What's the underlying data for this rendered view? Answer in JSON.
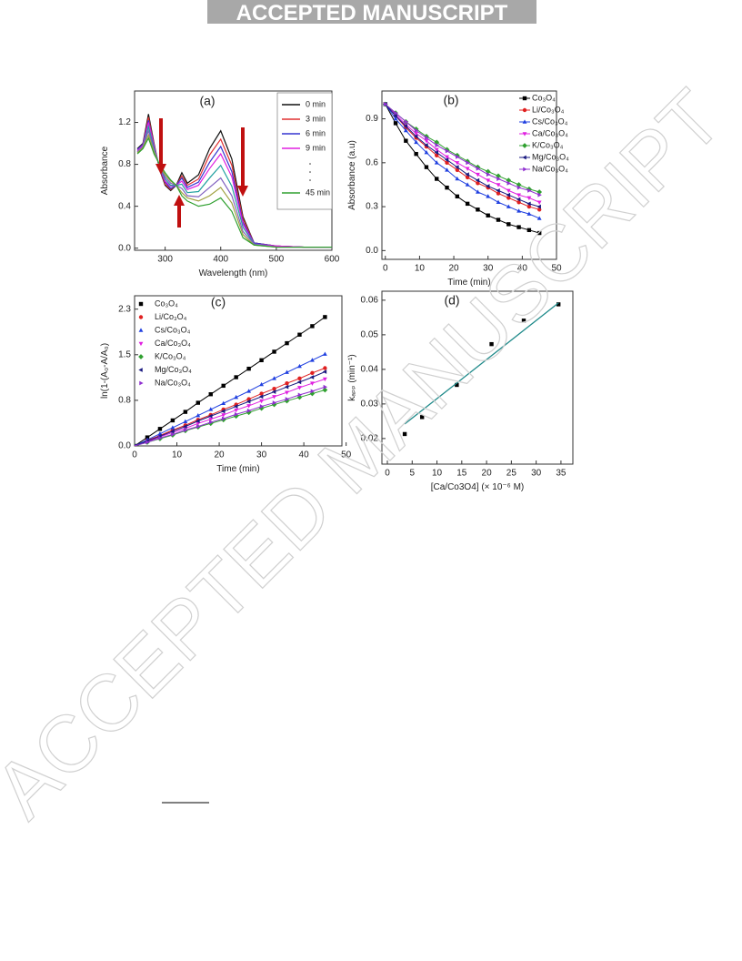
{
  "banner": "ACCEPTED MANUSCRIPT",
  "watermark": "ACCEPTED MANUSCRIPT",
  "chart_data": [
    {
      "type": "line",
      "panel_label": "(a)",
      "x_label": "Wavelength (nm)",
      "y_label": "Absorbance",
      "x": [
        250,
        260,
        270,
        280,
        290,
        300,
        310,
        320,
        330,
        340,
        360,
        380,
        400,
        420,
        440,
        460,
        500,
        550,
        600
      ],
      "series": [
        {
          "name": "0 min",
          "color": "#111111",
          "values": [
            0.95,
            1.0,
            1.28,
            1.0,
            0.75,
            0.6,
            0.55,
            0.6,
            0.72,
            0.62,
            0.7,
            0.95,
            1.12,
            0.85,
            0.3,
            0.05,
            0.02,
            0.01,
            0.01
          ]
        },
        {
          "name": "3 min",
          "color": "#e03030",
          "values": [
            0.94,
            0.99,
            1.25,
            0.99,
            0.76,
            0.61,
            0.56,
            0.6,
            0.69,
            0.6,
            0.66,
            0.89,
            1.04,
            0.79,
            0.28,
            0.05,
            0.02,
            0.01,
            0.01
          ]
        },
        {
          "name": "6 min",
          "color": "#3535d0",
          "values": [
            0.94,
            0.99,
            1.22,
            0.98,
            0.76,
            0.63,
            0.57,
            0.6,
            0.67,
            0.58,
            0.63,
            0.82,
            0.97,
            0.73,
            0.25,
            0.05,
            0.02,
            0.01,
            0.01
          ]
        },
        {
          "name": "9 min",
          "color": "#e020e0",
          "values": [
            0.93,
            0.98,
            1.2,
            0.97,
            0.77,
            0.64,
            0.59,
            0.6,
            0.64,
            0.56,
            0.6,
            0.76,
            0.9,
            0.68,
            0.23,
            0.04,
            0.02,
            0.01,
            0.01
          ]
        },
        {
          "color": "#20a0a0",
          "values": [
            0.92,
            0.97,
            1.16,
            0.95,
            0.78,
            0.66,
            0.6,
            0.6,
            0.61,
            0.53,
            0.54,
            0.67,
            0.79,
            0.59,
            0.2,
            0.04,
            0.01,
            0.01,
            0.01
          ]
        },
        {
          "color": "#8060c0",
          "values": [
            0.92,
            0.97,
            1.12,
            0.93,
            0.79,
            0.68,
            0.62,
            0.6,
            0.57,
            0.5,
            0.49,
            0.58,
            0.67,
            0.5,
            0.16,
            0.04,
            0.01,
            0.01,
            0.01
          ]
        },
        {
          "color": "#a0a040",
          "values": [
            0.91,
            0.96,
            1.08,
            0.92,
            0.79,
            0.7,
            0.64,
            0.6,
            0.53,
            0.48,
            0.45,
            0.5,
            0.58,
            0.43,
            0.13,
            0.03,
            0.01,
            0.01,
            0.01
          ]
        },
        {
          "name": "45 min",
          "color": "#30a030",
          "values": [
            0.9,
            0.95,
            1.05,
            0.9,
            0.8,
            0.72,
            0.65,
            0.6,
            0.5,
            0.45,
            0.4,
            0.42,
            0.48,
            0.35,
            0.1,
            0.03,
            0.01,
            0.01,
            0.01
          ]
        }
      ],
      "xlim": [
        245,
        600
      ],
      "xticks": [
        300,
        400,
        500,
        600
      ],
      "ylim": [
        -0.02,
        1.5
      ],
      "yticks": [
        {
          "value": 0,
          "label": "0.0"
        },
        0.4,
        0.8,
        1.2
      ]
    },
    {
      "type": "scatter",
      "panel_label": "(b)",
      "x_label": "Time (min)",
      "y_label": "Absorbance (a.u)",
      "x": [
        0,
        3,
        6,
        9,
        12,
        15,
        18,
        21,
        24,
        27,
        30,
        33,
        36,
        39,
        42,
        45
      ],
      "series": [
        {
          "name": "Co₃O₄",
          "color": "#000000",
          "marker": "square",
          "values": [
            1,
            0.87,
            0.75,
            0.66,
            0.57,
            0.49,
            0.43,
            0.37,
            0.32,
            0.28,
            0.24,
            0.21,
            0.18,
            0.16,
            0.14,
            0.12
          ]
        },
        {
          "name": "Li/Co₃O₄",
          "color": "#e02020",
          "marker": "circle",
          "values": [
            1,
            0.92,
            0.84,
            0.77,
            0.71,
            0.65,
            0.6,
            0.55,
            0.5,
            0.46,
            0.43,
            0.39,
            0.36,
            0.33,
            0.3,
            0.28
          ]
        },
        {
          "name": "Cs/Co₃O₄",
          "color": "#2040e0",
          "marker": "triangle-up",
          "values": [
            1,
            0.9,
            0.82,
            0.74,
            0.67,
            0.6,
            0.55,
            0.49,
            0.45,
            0.4,
            0.37,
            0.33,
            0.3,
            0.27,
            0.25,
            0.22
          ]
        },
        {
          "name": "Ca/Co₃O₄",
          "color": "#e020e0",
          "marker": "triangle-down",
          "values": [
            1,
            0.93,
            0.86,
            0.8,
            0.75,
            0.69,
            0.64,
            0.6,
            0.56,
            0.52,
            0.48,
            0.45,
            0.41,
            0.38,
            0.36,
            0.33
          ]
        },
        {
          "name": "K/Co₃O₄",
          "color": "#30a030",
          "marker": "diamond",
          "values": [
            1,
            0.94,
            0.88,
            0.83,
            0.78,
            0.74,
            0.69,
            0.65,
            0.61,
            0.57,
            0.54,
            0.51,
            0.48,
            0.45,
            0.42,
            0.4
          ]
        },
        {
          "name": "Mg/Co₃O₄",
          "color": "#1a1a80",
          "marker": "triangle-left",
          "values": [
            1,
            0.92,
            0.85,
            0.78,
            0.72,
            0.67,
            0.62,
            0.57,
            0.52,
            0.48,
            0.44,
            0.41,
            0.38,
            0.35,
            0.32,
            0.3
          ]
        },
        {
          "name": "Na/Co₃O₄",
          "color": "#9030d0",
          "marker": "triangle-right",
          "values": [
            1,
            0.94,
            0.88,
            0.82,
            0.77,
            0.72,
            0.68,
            0.64,
            0.6,
            0.56,
            0.52,
            0.49,
            0.46,
            0.43,
            0.41,
            0.38
          ]
        }
      ],
      "xlim": [
        -1,
        50
      ],
      "xticks": [
        0,
        10,
        20,
        30,
        40,
        50
      ],
      "ylim": [
        -0.06,
        1.09
      ],
      "yticks": [
        {
          "value": 0,
          "label": "0.0"
        },
        0.3,
        0.6,
        0.9
      ]
    },
    {
      "type": "scatter",
      "panel_label": "(c)",
      "x_label": "Time (min)",
      "y_label": "ln(1-(A₀-A/A₀)",
      "x": [
        0,
        3,
        6,
        9,
        12,
        15,
        18,
        21,
        24,
        27,
        30,
        33,
        36,
        39,
        42,
        45
      ],
      "series": [
        {
          "name": "Co₃O₄",
          "color": "#000000",
          "marker": "square",
          "values": [
            0,
            0.14,
            0.28,
            0.42,
            0.56,
            0.71,
            0.85,
            0.99,
            1.13,
            1.27,
            1.41,
            1.55,
            1.69,
            1.83,
            1.97,
            2.12
          ]
        },
        {
          "name": "Li/Co₃O₄",
          "color": "#e02020",
          "marker": "circle",
          "values": [
            0,
            0.09,
            0.17,
            0.26,
            0.34,
            0.43,
            0.51,
            0.6,
            0.68,
            0.77,
            0.86,
            0.94,
            1.03,
            1.11,
            1.2,
            1.28
          ]
        },
        {
          "name": "Cs/Co₃O₄",
          "color": "#2040e0",
          "marker": "triangle-up",
          "values": [
            0,
            0.1,
            0.2,
            0.3,
            0.4,
            0.5,
            0.6,
            0.7,
            0.8,
            0.9,
            1.01,
            1.11,
            1.21,
            1.31,
            1.41,
            1.51
          ]
        },
        {
          "name": "Ca/Co₃O₄",
          "color": "#e020e0",
          "marker": "triangle-down",
          "values": [
            0,
            0.07,
            0.15,
            0.22,
            0.29,
            0.37,
            0.44,
            0.51,
            0.59,
            0.66,
            0.74,
            0.81,
            0.88,
            0.96,
            1.03,
            1.1
          ]
        },
        {
          "name": "K/Co₃O₄",
          "color": "#30a030",
          "marker": "diamond",
          "values": [
            0,
            0.06,
            0.12,
            0.18,
            0.25,
            0.31,
            0.37,
            0.43,
            0.49,
            0.55,
            0.62,
            0.68,
            0.74,
            0.8,
            0.86,
            0.92
          ]
        },
        {
          "name": "Mg/Co₃O₄",
          "color": "#1a1a80",
          "marker": "triangle-left",
          "values": [
            0,
            0.08,
            0.16,
            0.24,
            0.32,
            0.41,
            0.49,
            0.57,
            0.65,
            0.73,
            0.81,
            0.89,
            0.97,
            1.05,
            1.13,
            1.22
          ]
        },
        {
          "name": "Na/Co₃O₄",
          "color": "#9030d0",
          "marker": "triangle-right",
          "values": [
            0,
            0.06,
            0.13,
            0.19,
            0.26,
            0.32,
            0.39,
            0.45,
            0.52,
            0.58,
            0.65,
            0.71,
            0.77,
            0.84,
            0.9,
            0.97
          ]
        }
      ],
      "xlim": [
        0,
        49
      ],
      "xticks": [
        0,
        10,
        20,
        30,
        40,
        50
      ],
      "ylim": [
        0,
        2.47
      ],
      "yticks": [
        {
          "value": 0,
          "label": "0.0"
        },
        {
          "value": 0.75,
          "label": "0.8"
        },
        1.5,
        {
          "value": 2.25,
          "label": "2.3"
        }
      ]
    },
    {
      "type": "scatter",
      "panel_label": "(d)",
      "x_label": "[Ca/Co3O4] (× 10⁻⁶ M)",
      "y_label": "kₐₚₚ (min⁻¹)",
      "x": [
        3.5,
        7,
        14,
        21,
        27.5,
        34.5
      ],
      "series": [
        {
          "color": "#000000",
          "marker": "square",
          "values": [
            0.0213,
            0.0262,
            0.0355,
            0.0473,
            0.0541,
            0.0588
          ]
        }
      ],
      "fit": {
        "color": "#1f8a8a",
        "x": [
          3.5,
          34.5
        ],
        "values": [
          0.0242,
          0.0592
        ]
      },
      "xlim": [
        -1.1,
        37.4
      ],
      "xticks": [
        0,
        5,
        10,
        15,
        20,
        25,
        30,
        35
      ],
      "ylim": [
        0.0126,
        0.0626
      ],
      "yticks": [
        0.02,
        0.03,
        0.04,
        0.05,
        0.06
      ]
    }
  ]
}
